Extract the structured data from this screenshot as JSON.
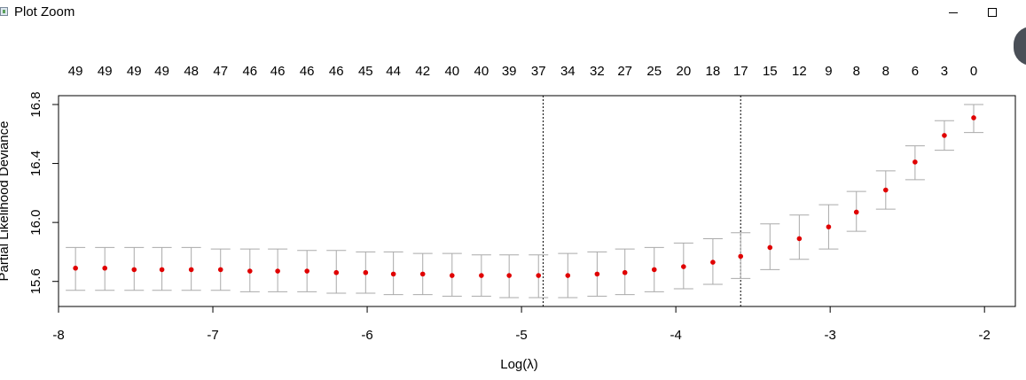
{
  "window": {
    "title": "Plot Zoom",
    "minimize_icon": "minimize-icon",
    "maximize_icon": "maximize-icon"
  },
  "chart_data": {
    "type": "scatter",
    "title": "",
    "xlabel": "Log(λ)",
    "ylabel": "Partial Likelihood Deviance",
    "xlim": [
      -8.0,
      -1.8
    ],
    "ylim": [
      15.43,
      16.86
    ],
    "x_ticks": [
      -8,
      -7,
      -6,
      -5,
      -4,
      -3,
      -2
    ],
    "y_ticks": [
      15.6,
      16.0,
      16.4,
      16.8
    ],
    "x_tick_labels": [
      "-8",
      "-7",
      "-6",
      "-5",
      "-4",
      "-3",
      "-2"
    ],
    "y_tick_labels": [
      "15.6",
      "16.0",
      "16.4",
      "16.8"
    ],
    "top_axis_labels": [
      "49",
      "49",
      "49",
      "49",
      "48",
      "47",
      "46",
      "46",
      "46",
      "46",
      "45",
      "44",
      "42",
      "40",
      "40",
      "39",
      "37",
      "34",
      "32",
      "27",
      "25",
      "20",
      "18",
      "17",
      "15",
      "12",
      "9",
      "8",
      "8",
      "6",
      "3",
      "0"
    ],
    "vlines": [
      -4.86,
      -3.58
    ],
    "point_color": "#e00000",
    "errorbar_color": "#aaaaaa",
    "grid": false,
    "legend": "none",
    "x": [
      -7.89,
      -7.7,
      -7.51,
      -7.33,
      -7.14,
      -6.95,
      -6.76,
      -6.58,
      -6.39,
      -6.2,
      -6.01,
      -5.83,
      -5.64,
      -5.45,
      -5.26,
      -5.08,
      -4.89,
      -4.7,
      -4.51,
      -4.33,
      -4.14,
      -3.95,
      -3.76,
      -3.58,
      -3.39,
      -3.2,
      -3.01,
      -2.83,
      -2.64,
      -2.45,
      -2.26,
      -2.07
    ],
    "mean": [
      15.69,
      15.69,
      15.68,
      15.68,
      15.68,
      15.68,
      15.67,
      15.67,
      15.67,
      15.66,
      15.66,
      15.65,
      15.65,
      15.64,
      15.64,
      15.64,
      15.64,
      15.64,
      15.65,
      15.66,
      15.68,
      15.7,
      15.73,
      15.77,
      15.83,
      15.89,
      15.97,
      16.07,
      16.22,
      16.41,
      16.59,
      16.71
    ],
    "upper": [
      15.83,
      15.83,
      15.83,
      15.83,
      15.83,
      15.82,
      15.82,
      15.82,
      15.81,
      15.81,
      15.8,
      15.8,
      15.79,
      15.79,
      15.78,
      15.78,
      15.78,
      15.79,
      15.8,
      15.82,
      15.83,
      15.86,
      15.89,
      15.93,
      15.99,
      16.05,
      16.12,
      16.21,
      16.35,
      16.52,
      16.69,
      16.8
    ],
    "lower": [
      15.54,
      15.54,
      15.54,
      15.54,
      15.54,
      15.54,
      15.53,
      15.53,
      15.53,
      15.52,
      15.52,
      15.51,
      15.51,
      15.5,
      15.5,
      15.49,
      15.49,
      15.49,
      15.5,
      15.51,
      15.53,
      15.55,
      15.58,
      15.62,
      15.68,
      15.75,
      15.82,
      15.94,
      16.09,
      16.29,
      16.49,
      16.61
    ]
  }
}
